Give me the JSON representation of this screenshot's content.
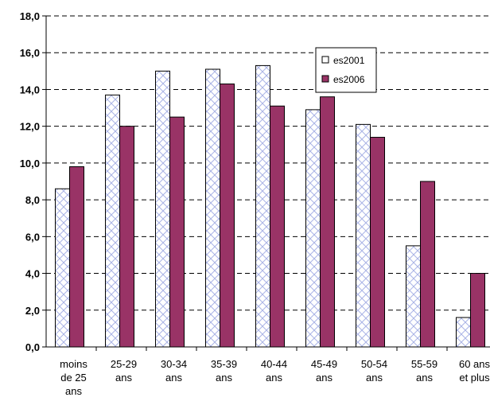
{
  "chart_data": {
    "type": "bar",
    "categories": [
      [
        "moins",
        "de 25",
        "ans"
      ],
      [
        "25-29",
        "ans"
      ],
      [
        "30-34",
        "ans"
      ],
      [
        "35-39",
        "ans"
      ],
      [
        "40-44",
        "ans"
      ],
      [
        "45-49",
        "ans"
      ],
      [
        "50-54",
        "ans"
      ],
      [
        "55-59",
        "ans"
      ],
      [
        "60 ans",
        "et plus"
      ]
    ],
    "series": [
      {
        "name": "es2001",
        "values": [
          8.6,
          13.7,
          15.0,
          15.1,
          15.3,
          12.9,
          12.1,
          5.5,
          1.6
        ],
        "fill": "#ffffff",
        "pattern": "crosshatch-blue",
        "pattern_color": "#aab4e6"
      },
      {
        "name": "es2006",
        "values": [
          9.8,
          12.0,
          12.5,
          14.3,
          13.1,
          13.6,
          11.4,
          9.0,
          4.0
        ],
        "fill": "#993366"
      }
    ],
    "y_ticks": [
      "0,0",
      "2,0",
      "4,0",
      "6,0",
      "8,0",
      "10,0",
      "12,0",
      "14,0",
      "16,0",
      "18,0"
    ],
    "ylim": [
      0,
      18
    ],
    "y_tick_step": 2,
    "grid": "dashed-horizontal",
    "legend": "top-right",
    "title": "",
    "xlabel": "",
    "ylabel": ""
  }
}
